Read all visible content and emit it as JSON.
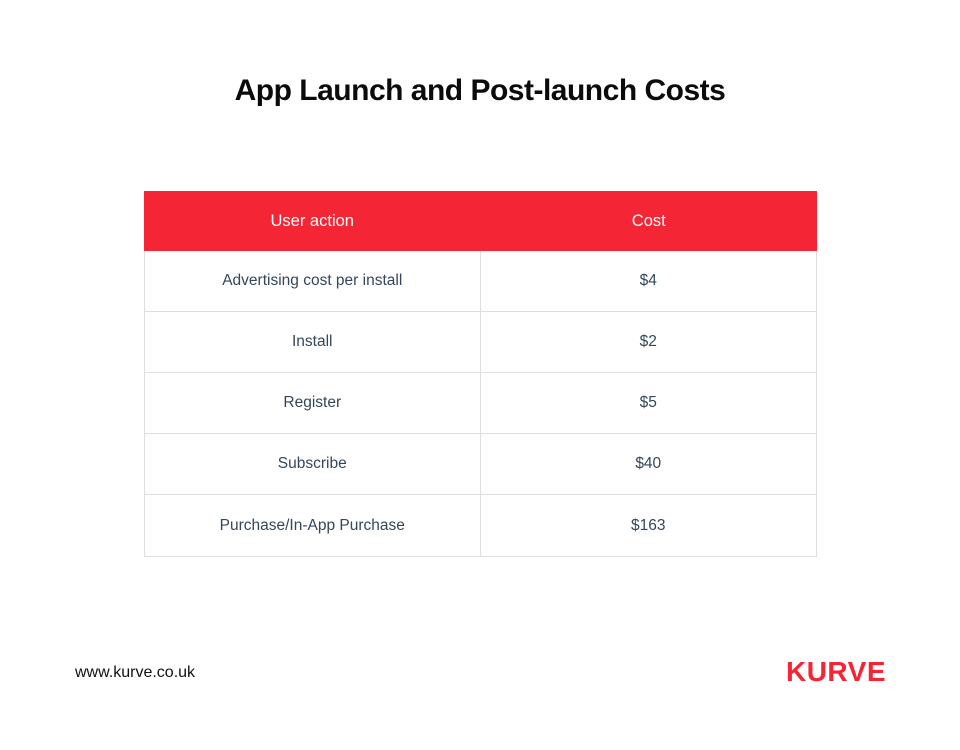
{
  "page": {
    "title": "App Launch and Post-launch Costs"
  },
  "table": {
    "headers": {
      "action": "User action",
      "cost": "Cost"
    },
    "rows": [
      {
        "action": "Advertising cost per install",
        "cost": "$4"
      },
      {
        "action": "Install",
        "cost": "$2"
      },
      {
        "action": "Register",
        "cost": "$5"
      },
      {
        "action": "Subscribe",
        "cost": "$40"
      },
      {
        "action": "Purchase/In-App Purchase",
        "cost": "$163"
      }
    ]
  },
  "footer": {
    "website": "www.kurve.co.uk",
    "brand": "KURVE"
  },
  "colors": {
    "accent_red": "#f42534",
    "header_text": "#ffffff",
    "cell_text": "#33475b",
    "border": "#dedede",
    "title_text": "#0b0b0b",
    "background": "#ffffff"
  },
  "chart_data": {
    "type": "table",
    "title": "App Launch and Post-launch Costs",
    "columns": [
      "User action",
      "Cost"
    ],
    "rows": [
      [
        "Advertising cost per install",
        "$4"
      ],
      [
        "Install",
        "$2"
      ],
      [
        "Register",
        "$5"
      ],
      [
        "Subscribe",
        "$40"
      ],
      [
        "Purchase/In-App Purchase",
        "$163"
      ]
    ],
    "values_numeric_usd": [
      4,
      2,
      5,
      40,
      163
    ],
    "legend_position": "none",
    "grid": false
  }
}
